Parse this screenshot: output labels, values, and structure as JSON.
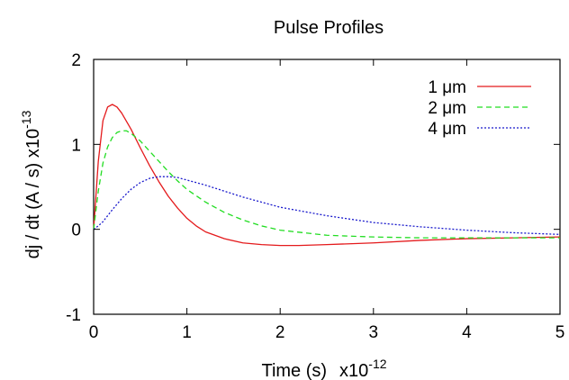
{
  "chart_data": {
    "type": "line",
    "title": "Pulse Profiles",
    "xlabel": "Time (s)",
    "xlabel_multiplier_base": "x10",
    "xlabel_multiplier_exp": "-12",
    "ylabel": "dj / dt (A / s) x10",
    "ylabel_multiplier_exp": "-13",
    "xlim": [
      0,
      5
    ],
    "ylim": [
      -1,
      2
    ],
    "xticks": [
      "0",
      "1",
      "2",
      "3",
      "4",
      "5"
    ],
    "yticks": [
      "-1",
      "0",
      "1",
      "2"
    ],
    "grid": false,
    "legend_position": "top-right",
    "series": [
      {
        "name": "1 μm",
        "color": "#e41a1c",
        "dash": "solid",
        "x": [
          0,
          0.05,
          0.1,
          0.15,
          0.2,
          0.25,
          0.3,
          0.4,
          0.5,
          0.6,
          0.7,
          0.8,
          0.9,
          1.0,
          1.1,
          1.2,
          1.4,
          1.6,
          1.8,
          2.0,
          2.2,
          2.5,
          3.0,
          3.5,
          4.0,
          4.5,
          5.0
        ],
        "y": [
          0,
          0.8,
          1.28,
          1.44,
          1.47,
          1.44,
          1.37,
          1.18,
          0.96,
          0.75,
          0.56,
          0.39,
          0.25,
          0.13,
          0.04,
          -0.03,
          -0.11,
          -0.16,
          -0.18,
          -0.19,
          -0.19,
          -0.18,
          -0.16,
          -0.13,
          -0.11,
          -0.1,
          -0.09
        ]
      },
      {
        "name": "2 μm",
        "color": "#22dd22",
        "dash": "dashed",
        "x": [
          0,
          0.05,
          0.1,
          0.15,
          0.2,
          0.25,
          0.3,
          0.35,
          0.4,
          0.5,
          0.6,
          0.7,
          0.8,
          0.9,
          1.0,
          1.2,
          1.4,
          1.6,
          1.8,
          2.0,
          2.5,
          3.0,
          3.5,
          4.0,
          4.5,
          5.0
        ],
        "y": [
          0,
          0.45,
          0.78,
          0.97,
          1.08,
          1.14,
          1.16,
          1.16,
          1.13,
          1.04,
          0.92,
          0.8,
          0.68,
          0.57,
          0.47,
          0.32,
          0.2,
          0.11,
          0.04,
          -0.01,
          -0.07,
          -0.09,
          -0.1,
          -0.1,
          -0.1,
          -0.1
        ]
      },
      {
        "name": "4 μm",
        "color": "#1a1acc",
        "dash": "dotted",
        "x": [
          0,
          0.05,
          0.1,
          0.15,
          0.2,
          0.3,
          0.4,
          0.5,
          0.6,
          0.7,
          0.8,
          0.9,
          1.0,
          1.2,
          1.4,
          1.6,
          1.8,
          2.0,
          2.5,
          3.0,
          3.5,
          4.0,
          4.5,
          5.0
        ],
        "y": [
          0,
          0.04,
          0.09,
          0.16,
          0.23,
          0.36,
          0.47,
          0.55,
          0.6,
          0.62,
          0.62,
          0.61,
          0.58,
          0.52,
          0.45,
          0.38,
          0.32,
          0.26,
          0.16,
          0.08,
          0.03,
          -0.01,
          -0.04,
          -0.06
        ]
      }
    ]
  }
}
